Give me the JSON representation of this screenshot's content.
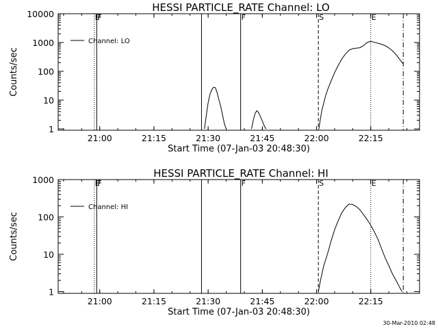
{
  "footer": {
    "timestamp": "30-Mar-2010 02:48"
  },
  "chart_data": [
    {
      "type": "line",
      "title": "HESSI PARTICLE_RATE Channel: LO",
      "xlabel": "Start Time (07-Jan-03 20:48:30)",
      "ylabel": "Counts/sec",
      "yscale": "log",
      "xlim": [
        "20:48:30",
        "22:28:30"
      ],
      "ylim": [
        0.9,
        10000
      ],
      "xticks": [
        "21:00",
        "21:15",
        "21:30",
        "21:45",
        "22:00",
        "22:15"
      ],
      "yticks": [
        "1",
        "10",
        "100",
        "1000",
        "10000"
      ],
      "legend": {
        "label": "Channel: LO",
        "position": "top-left"
      },
      "grid": false,
      "markers": [
        {
          "time": "20:58:30",
          "label": "E",
          "style": "dotted"
        },
        {
          "time": "20:59:10",
          "label": "F",
          "style": "solid"
        },
        {
          "time": "21:28:10",
          "label": "",
          "style": "solid"
        },
        {
          "time": "21:39:00",
          "label": "F",
          "style": "solid"
        },
        {
          "time": "22:00:30",
          "label": "S",
          "style": "dashed"
        },
        {
          "time": "22:15:00",
          "label": "E",
          "style": "dotted"
        },
        {
          "time": "22:24:00",
          "label": "",
          "style": "dashdot"
        }
      ],
      "series": [
        {
          "segments": [
            [
              [
                "21:29:00",
                1
              ],
              [
                "21:29:30",
                3
              ],
              [
                "21:30:00",
                8
              ],
              [
                "21:30:30",
                16
              ],
              [
                "21:31:00",
                23
              ],
              [
                "21:31:30",
                28
              ],
              [
                "21:32:00",
                27
              ],
              [
                "21:32:30",
                18
              ],
              [
                "21:33:00",
                10
              ],
              [
                "21:33:30",
                6
              ],
              [
                "21:34:00",
                3
              ],
              [
                "21:34:30",
                1.5
              ],
              [
                "21:35:00",
                1
              ]
            ],
            [
              [
                "21:42:00",
                1
              ],
              [
                "21:42:30",
                2
              ],
              [
                "21:43:00",
                3.5
              ],
              [
                "21:43:30",
                4.3
              ],
              [
                "21:44:00",
                3.6
              ],
              [
                "21:44:30",
                2.6
              ],
              [
                "21:45:00",
                1.9
              ],
              [
                "21:45:30",
                1.3
              ],
              [
                "21:46:00",
                1
              ]
            ],
            [
              [
                "22:00:40",
                1
              ],
              [
                "22:01:00",
                2
              ],
              [
                "22:01:30",
                4.5
              ],
              [
                "22:02:00",
                8
              ],
              [
                "22:02:30",
                14
              ],
              [
                "22:03:00",
                22
              ],
              [
                "22:04:00",
                45
              ],
              [
                "22:05:00",
                90
              ],
              [
                "22:06:00",
                160
              ],
              [
                "22:07:00",
                270
              ],
              [
                "22:08:00",
                400
              ],
              [
                "22:09:00",
                540
              ],
              [
                "22:10:00",
                610
              ],
              [
                "22:11:00",
                640
              ],
              [
                "22:12:00",
                660
              ],
              [
                "22:13:00",
                780
              ],
              [
                "22:14:00",
                1000
              ],
              [
                "22:15:00",
                1100
              ],
              [
                "22:16:00",
                1020
              ],
              [
                "22:17:00",
                940
              ],
              [
                "22:18:00",
                870
              ],
              [
                "22:19:00",
                780
              ],
              [
                "22:20:00",
                650
              ],
              [
                "22:21:00",
                520
              ],
              [
                "22:22:00",
                380
              ],
              [
                "22:23:00",
                260
              ],
              [
                "22:24:00",
                180
              ]
            ]
          ]
        }
      ]
    },
    {
      "type": "line",
      "title": "HESSI PARTICLE_RATE Channel: HI",
      "xlabel": "Start Time (07-Jan-03 20:48:30)",
      "ylabel": "Counts/sec",
      "yscale": "log",
      "xlim": [
        "20:48:30",
        "22:28:30"
      ],
      "ylim": [
        0.9,
        1000
      ],
      "xticks": [
        "21:00",
        "21:15",
        "21:30",
        "21:45",
        "22:00",
        "22:15"
      ],
      "yticks": [
        "1",
        "10",
        "100",
        "1000"
      ],
      "legend": {
        "label": "Channel: HI",
        "position": "top-left"
      },
      "grid": false,
      "markers": [
        {
          "time": "20:58:30",
          "label": "E",
          "style": "dotted"
        },
        {
          "time": "20:59:10",
          "label": "F",
          "style": "solid"
        },
        {
          "time": "21:28:10",
          "label": "",
          "style": "solid"
        },
        {
          "time": "21:39:00",
          "label": "F",
          "style": "solid"
        },
        {
          "time": "22:00:30",
          "label": "S",
          "style": "dashed"
        },
        {
          "time": "22:15:00",
          "label": "E",
          "style": "dotted"
        },
        {
          "time": "22:24:00",
          "label": "",
          "style": "dashdot"
        }
      ],
      "series": [
        {
          "segments": [
            [
              [
                "22:00:30",
                1
              ],
              [
                "22:01:00",
                1.8
              ],
              [
                "22:01:30",
                3
              ],
              [
                "22:02:00",
                5
              ],
              [
                "22:03:00",
                10
              ],
              [
                "22:04:00",
                22
              ],
              [
                "22:05:00",
                45
              ],
              [
                "22:06:00",
                80
              ],
              [
                "22:07:00",
                130
              ],
              [
                "22:08:00",
                180
              ],
              [
                "22:09:00",
                220
              ],
              [
                "22:10:00",
                215
              ],
              [
                "22:11:00",
                190
              ],
              [
                "22:12:00",
                155
              ],
              [
                "22:13:00",
                115
              ],
              [
                "22:14:00",
                85
              ],
              [
                "22:15:00",
                60
              ],
              [
                "22:16:00",
                40
              ],
              [
                "22:17:00",
                25
              ],
              [
                "22:18:00",
                14
              ],
              [
                "22:19:00",
                8
              ],
              [
                "22:20:00",
                5
              ],
              [
                "22:21:00",
                3
              ],
              [
                "22:22:00",
                2
              ],
              [
                "22:23:00",
                1.3
              ],
              [
                "22:23:40",
                1
              ]
            ]
          ]
        }
      ]
    }
  ]
}
